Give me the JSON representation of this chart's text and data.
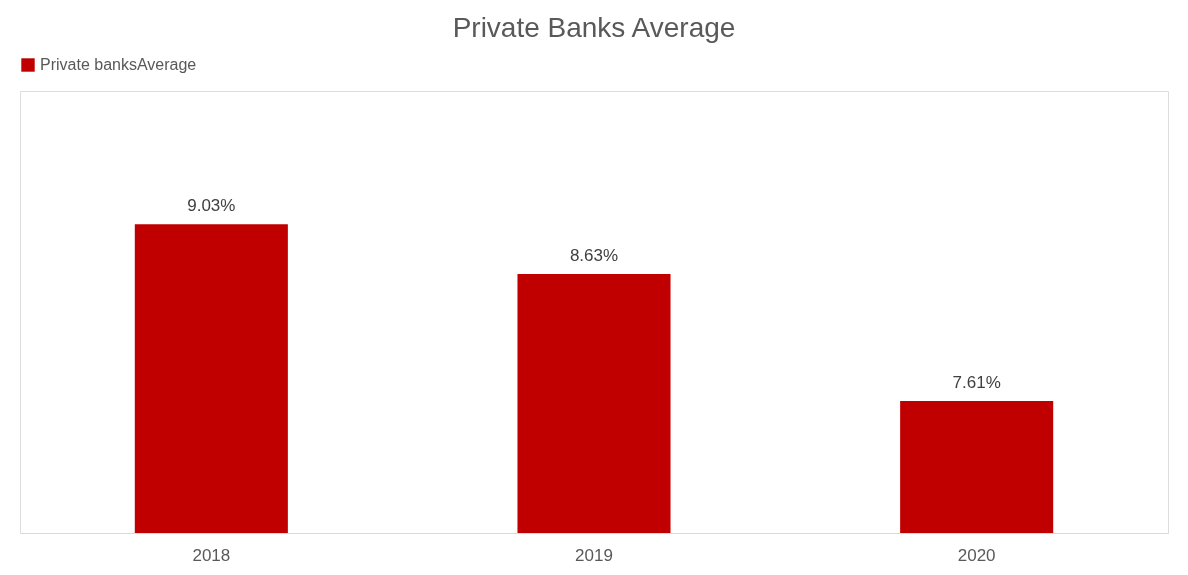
{
  "chart_data": {
    "type": "bar",
    "title": "Private Banks Average",
    "categories": [
      "2018",
      "2019",
      "2020"
    ],
    "series": [
      {
        "name": "Private banksAverage",
        "color": "#c00000",
        "values": [
          9.03,
          8.63,
          7.61
        ],
        "value_labels": [
          "9.03%",
          "8.63%",
          "7.61%"
        ]
      }
    ],
    "ylim": [
      6.55,
      10.1
    ],
    "legend": "top",
    "grid": false,
    "tick_labels": "x"
  }
}
